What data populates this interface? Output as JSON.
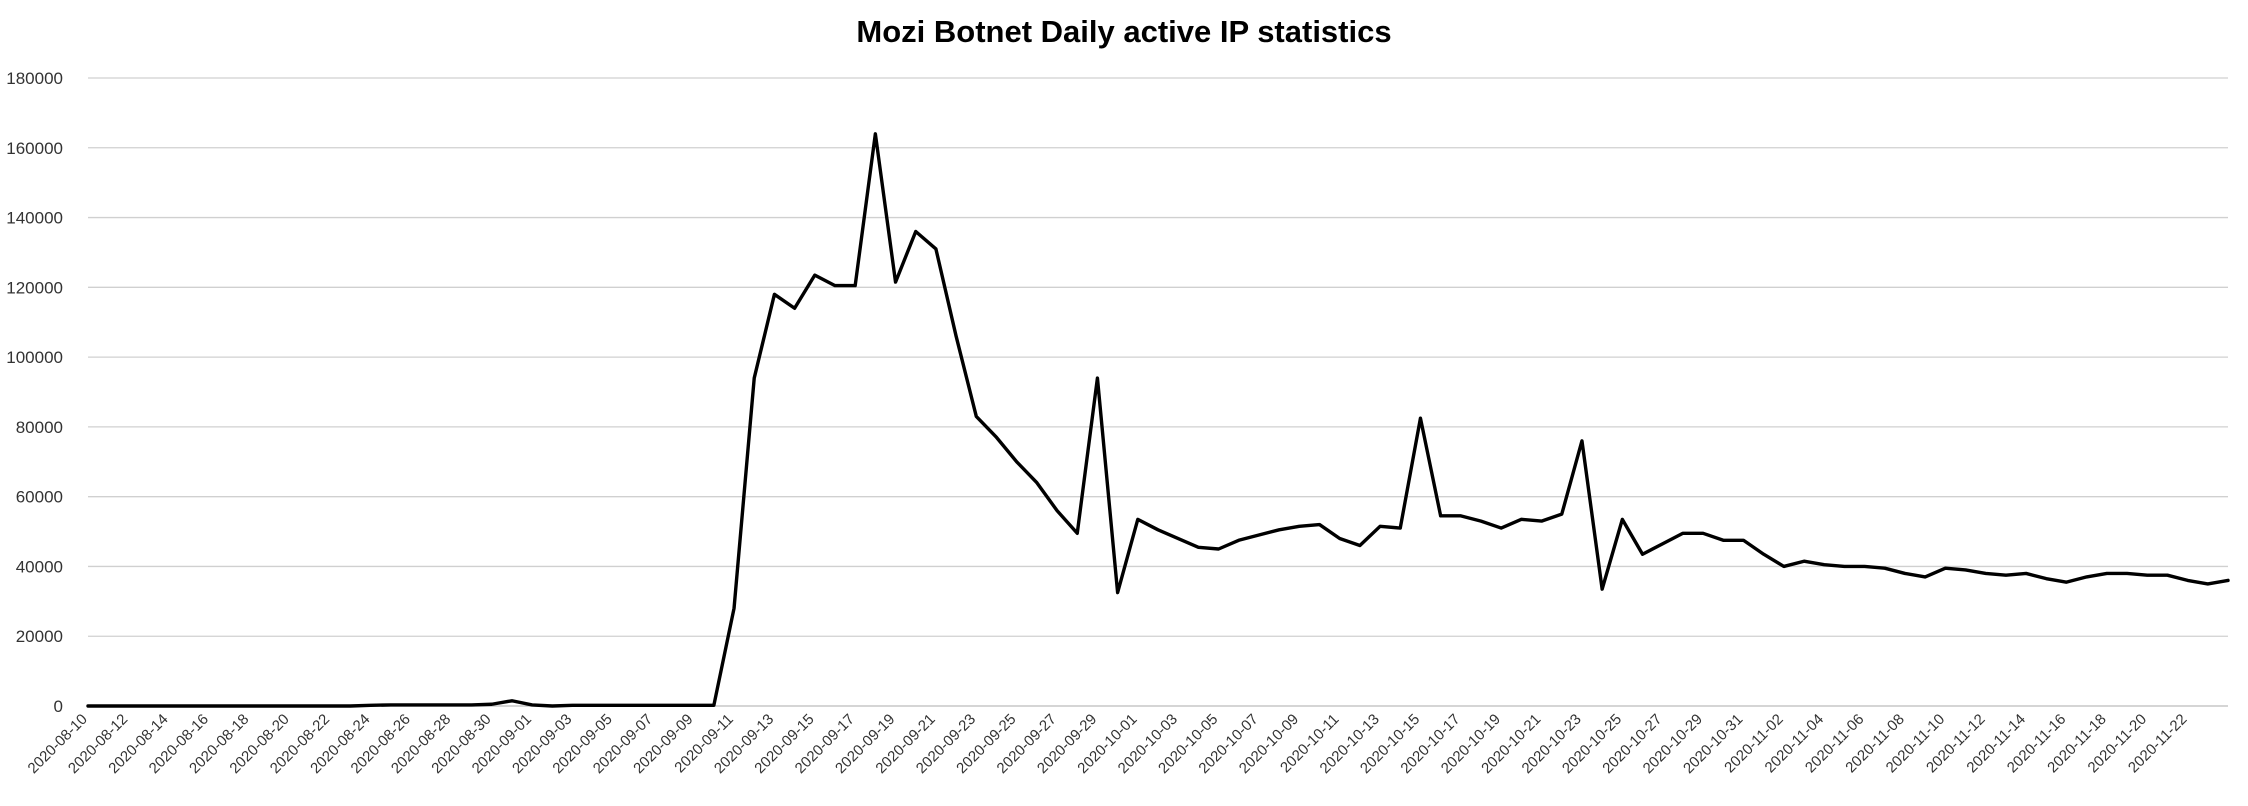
{
  "chart_data": {
    "type": "line",
    "title": "Mozi Botnet Daily active IP statistics",
    "xlabel": "",
    "ylabel": "",
    "ylim": [
      0,
      180000
    ],
    "yticks": [
      0,
      20000,
      40000,
      60000,
      80000,
      100000,
      120000,
      140000,
      160000,
      180000
    ],
    "grid": true,
    "legend": "none",
    "line_color": "#000000",
    "x_start": "2020-08-10",
    "x_end": "2020-11-23",
    "x_tick_labels": [
      "2020-08-10",
      "2020-08-12",
      "2020-08-14",
      "2020-08-16",
      "2020-08-18",
      "2020-08-20",
      "2020-08-22",
      "2020-08-24",
      "2020-08-26",
      "2020-08-28",
      "2020-08-30",
      "2020-09-01",
      "2020-09-03",
      "2020-09-05",
      "2020-09-07",
      "2020-09-09",
      "2020-09-11",
      "2020-09-13",
      "2020-09-15",
      "2020-09-17",
      "2020-09-19",
      "2020-09-21",
      "2020-09-23",
      "2020-09-25",
      "2020-09-27",
      "2020-09-29",
      "2020-10-01",
      "2020-10-03",
      "2020-10-05",
      "2020-10-07",
      "2020-10-09",
      "2020-10-11",
      "2020-10-13",
      "2020-10-15",
      "2020-10-17",
      "2020-10-19",
      "2020-10-21",
      "2020-10-23",
      "2020-10-25",
      "2020-10-27",
      "2020-10-29",
      "2020-10-31",
      "2020-11-02",
      "2020-11-04",
      "2020-11-06",
      "2020-11-08",
      "2020-11-10",
      "2020-11-12",
      "2020-11-14",
      "2020-11-16",
      "2020-11-18",
      "2020-11-20",
      "2020-11-22"
    ],
    "series": [
      {
        "values": [
          0,
          0,
          0,
          0,
          0,
          0,
          0,
          0,
          0,
          0,
          0,
          0,
          0,
          0,
          200,
          300,
          300,
          300,
          300,
          300,
          500,
          1500,
          300,
          0,
          200,
          200,
          200,
          200,
          200,
          200,
          200,
          200,
          28000,
          94000,
          118000,
          114000,
          123500,
          120500,
          120500,
          164000,
          121500,
          136000,
          131000,
          106000,
          83000,
          77000,
          70000,
          64000,
          56000,
          49500,
          94000,
          32500,
          53500,
          50500,
          48000,
          45500,
          45000,
          47500,
          49000,
          50500,
          51500,
          52000,
          48000,
          46000,
          51500,
          51000,
          82500,
          54500,
          54500,
          53000,
          51000,
          53500,
          53000,
          55000,
          76000,
          33500,
          53500,
          43500,
          46500,
          49500,
          49500,
          47500,
          47500,
          43500,
          40000,
          41500,
          40500,
          40000,
          40000,
          39500,
          38000,
          37000,
          39500,
          39000,
          38000,
          37500,
          38000,
          36500,
          35500,
          37000,
          38000,
          38000,
          37500,
          37500,
          36000,
          35000,
          36000
        ]
      }
    ]
  }
}
